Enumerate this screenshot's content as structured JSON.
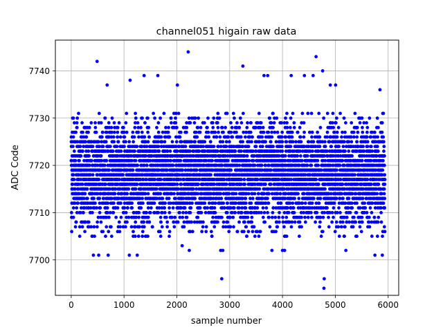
{
  "chart_data": {
    "type": "scatter",
    "title": "channel051 higain raw data",
    "xlabel": "sample number",
    "ylabel": "ADC Code",
    "xlim": [
      -300,
      6200
    ],
    "ylim": [
      7692.5,
      7746.5
    ],
    "xticks": [
      0,
      1000,
      2000,
      3000,
      4000,
      5000,
      6000
    ],
    "yticks": [
      7700,
      7710,
      7720,
      7730,
      7740
    ],
    "grid": true,
    "marker_color": "#0000ff",
    "series": [
      {
        "n_samples": 5940,
        "bulk_range": [
          7705,
          7731
        ],
        "center": 7718,
        "outliers": [
          {
            "x": 490,
            "y": 7742
          },
          {
            "x": 2215,
            "y": 7744
          },
          {
            "x": 3250,
            "y": 7741
          },
          {
            "x": 4635,
            "y": 7743
          },
          {
            "x": 4760,
            "y": 7740
          },
          {
            "x": 4580,
            "y": 7739
          },
          {
            "x": 1380,
            "y": 7739
          },
          {
            "x": 1640,
            "y": 7739
          },
          {
            "x": 3650,
            "y": 7739
          },
          {
            "x": 4415,
            "y": 7739
          },
          {
            "x": 4165,
            "y": 7739
          },
          {
            "x": 1115,
            "y": 7738
          },
          {
            "x": 680,
            "y": 7737
          },
          {
            "x": 2010,
            "y": 7737
          },
          {
            "x": 4905,
            "y": 7737
          },
          {
            "x": 5005,
            "y": 7737
          },
          {
            "x": 5845,
            "y": 7736
          },
          {
            "x": 3720,
            "y": 7739
          },
          {
            "x": 2850,
            "y": 7696
          },
          {
            "x": 4790,
            "y": 7696
          },
          {
            "x": 4785,
            "y": 7694
          },
          {
            "x": 420,
            "y": 7701
          },
          {
            "x": 520,
            "y": 7701
          },
          {
            "x": 700,
            "y": 7701
          },
          {
            "x": 1100,
            "y": 7701
          },
          {
            "x": 1250,
            "y": 7701
          },
          {
            "x": 5750,
            "y": 7701
          },
          {
            "x": 5890,
            "y": 7701
          },
          {
            "x": 2830,
            "y": 7702
          },
          {
            "x": 2870,
            "y": 7702
          },
          {
            "x": 3800,
            "y": 7702
          },
          {
            "x": 4000,
            "y": 7702
          },
          {
            "x": 4040,
            "y": 7702
          },
          {
            "x": 2235,
            "y": 7702
          },
          {
            "x": 2100,
            "y": 7703
          },
          {
            "x": 5200,
            "y": 7702
          }
        ]
      }
    ]
  }
}
